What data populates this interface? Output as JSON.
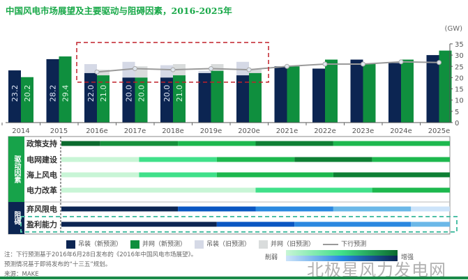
{
  "chart_data": {
    "type": "bar",
    "title": "中国风电市场展望及主要驱动与阻碍因素，2016-2025年",
    "unit": "(GW)",
    "ylim": [
      0,
      35
    ],
    "yticks": [
      0,
      5,
      10,
      15,
      20,
      25,
      30,
      35
    ],
    "categories": [
      "2014",
      "2015",
      "2016e",
      "2017e",
      "2018e",
      "2019e",
      "2020e",
      "2021e",
      "2022e",
      "2023e",
      "2024e",
      "2025e"
    ],
    "series": [
      {
        "name": "吊装（新预测）",
        "color": "#0c2552",
        "values": [
          23.2,
          28.2,
          22.0,
          20.0,
          20.0,
          22.0,
          21.0,
          25.0,
          24.0,
          28.0,
          26.5,
          30.0
        ]
      },
      {
        "name": "并网（新预测）",
        "color": "#0f8f3e",
        "values": [
          20.2,
          29.4,
          21.0,
          20.0,
          21.0,
          23.0,
          22.0,
          25.0,
          28.0,
          26.0,
          28.0,
          32.0
        ]
      },
      {
        "name": "吊装（旧预测）",
        "color": "#d5d9e6",
        "values": [
          null,
          null,
          26.0,
          27.0,
          25.5,
          23.0,
          27.0,
          null,
          null,
          null,
          null,
          null
        ]
      },
      {
        "name": "并网（旧预测）",
        "color": "#d9dcdc",
        "values": [
          null,
          null,
          23.5,
          25.0,
          26.0,
          26.0,
          24.0,
          null,
          null,
          null,
          null,
          null
        ]
      },
      {
        "name": "下行预测",
        "color": "#999999",
        "values": [
          null,
          null,
          22.5,
          24.0,
          23.5,
          24.0,
          23.5,
          25.0,
          26.0,
          26.0,
          27.0,
          26.7
        ]
      }
    ],
    "bar_labels": {
      "series0": [
        "23.2",
        "28.2",
        "22.0",
        "20.0",
        "20.0"
      ],
      "series1": [
        "20.2",
        "29.4",
        "21.0",
        "20.0",
        "21.0"
      ]
    }
  },
  "factors": {
    "groups": [
      {
        "label": "驱动因素",
        "color": "#17a34a"
      },
      {
        "label": "阻碍",
        "color": "#0c2552"
      }
    ],
    "rows": [
      {
        "label": "政策支持",
        "group": 0,
        "segments": [
          [
            0,
            1,
            "#0b6a2e"
          ],
          [
            1,
            3,
            "#16913c"
          ],
          [
            3,
            5,
            "#1db84e"
          ],
          [
            5,
            7,
            "#0e7f34"
          ],
          [
            7,
            10,
            "#1db84e"
          ]
        ]
      },
      {
        "label": "电网建设",
        "group": 0,
        "segments": [
          [
            0,
            2,
            "#c8f5d6"
          ],
          [
            2,
            4,
            "#40e08a"
          ],
          [
            4,
            6,
            "#1db84e"
          ],
          [
            6,
            8,
            "#0e7f34"
          ],
          [
            8,
            10,
            "#1db84e"
          ]
        ]
      },
      {
        "label": "海上风电",
        "group": 0,
        "segments": [
          [
            0,
            2,
            "#c8f5d6"
          ],
          [
            2,
            4,
            "#40e08a"
          ],
          [
            4,
            7,
            "#1db84e"
          ],
          [
            7,
            10,
            "#0e7f34"
          ]
        ]
      },
      {
        "label": "电力改革",
        "group": 0,
        "segments": [
          [
            0,
            5,
            "#c8f5d6"
          ],
          [
            5,
            8,
            "#40e08a"
          ],
          [
            8,
            10,
            "#1db84e"
          ]
        ]
      },
      {
        "label": "弃风限电",
        "group": 1,
        "segments": [
          [
            0,
            3,
            "#0c2552"
          ],
          [
            3,
            5,
            "#0a56c2"
          ],
          [
            5,
            7,
            "#2a88e0"
          ],
          [
            7,
            9,
            "#6bb8e8"
          ],
          [
            9,
            10,
            "#cde4fa"
          ]
        ]
      },
      {
        "label": "盈利能力",
        "group": 1,
        "segments": [
          [
            0,
            4,
            "#0c2552"
          ],
          [
            4,
            6,
            "#0a56c2"
          ],
          [
            6,
            9,
            "#2a88e0"
          ],
          [
            9,
            10,
            "#6bb8e8"
          ]
        ]
      }
    ]
  },
  "gradient_legend": {
    "weak": "削弱",
    "strong": "增强"
  },
  "notes": [
    "注：下行预测基于2016年6月28日发布的《2016年中国风电市场展望》。",
    "预测情况基于即将发布的“十三五”规划。",
    "来源：MAKE"
  ],
  "watermark": "北极星风力发电网"
}
